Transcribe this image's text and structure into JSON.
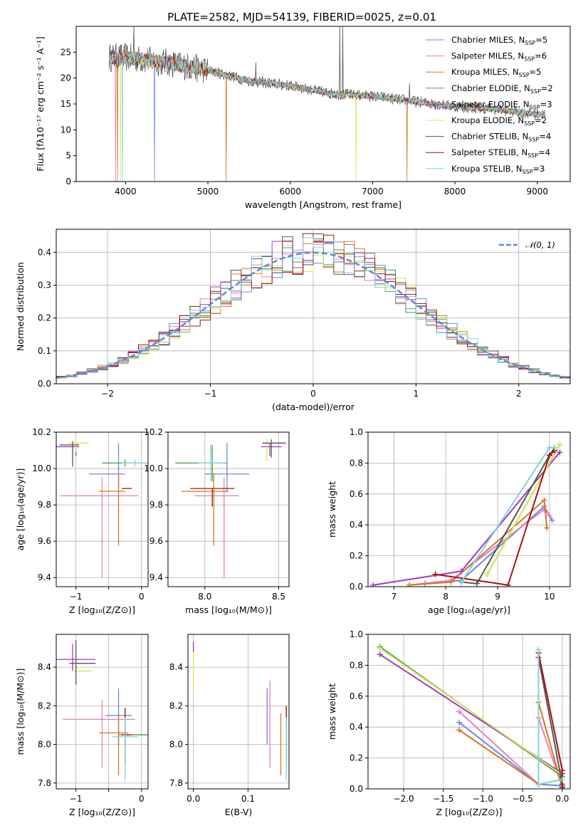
{
  "colors": [
    "#6a8be0",
    "#e67fbf",
    "#d8771f",
    "#4a9a4a",
    "#a13ac6",
    "#d6e85a",
    "#555555",
    "#a51414",
    "#7fd3dc"
  ],
  "chart_data": [
    {
      "id": "spectrum",
      "type": "line",
      "title": "PLATE=2582, MJD=54139, FIBERID=0025, z=0.01",
      "xlabel": "wavelength [Angstrom, rest frame]",
      "ylabel": "Flux [fλ10⁻¹⁷ erg cm⁻² s⁻¹ A⁻¹]",
      "xlim": [
        3400,
        9400
      ],
      "ylim": [
        0,
        30
      ],
      "xticks": [
        4000,
        5000,
        6000,
        7000,
        8000,
        9000
      ],
      "yticks": [
        0,
        5,
        10,
        15,
        20,
        25
      ],
      "grid": false,
      "legend": "top-right",
      "series": [
        {
          "name": "Chabrier MILES, N_SSP=5"
        },
        {
          "name": "Salpeter MILES, N_SSP=6"
        },
        {
          "name": "Kroupa MILES, N_SSP=5"
        },
        {
          "name": "Chabrier ELODIE, N_SSP=2"
        },
        {
          "name": "Salpeter ELODIE, N_SSP=3"
        },
        {
          "name": "Kroupa ELODIE, N_SSP=2"
        },
        {
          "name": "Chabrier STELIB, N_SSP=4"
        },
        {
          "name": "Salpeter STELIB, N_SSP=4"
        },
        {
          "name": "Kroupa STELIB, N_SSP=3"
        }
      ],
      "continuum": {
        "x": [
          3800,
          4000,
          4500,
          5000,
          5500,
          6000,
          6500,
          7000,
          7500,
          8000,
          8500,
          9000,
          9100
        ],
        "y": [
          24,
          24,
          23,
          21.5,
          19.5,
          18.5,
          17,
          16.5,
          15.5,
          14.5,
          14,
          13,
          13
        ]
      },
      "drops": [
        {
          "x": 3900,
          "series": 2
        },
        {
          "x": 3940,
          "series": 5
        },
        {
          "x": 5220,
          "series": 2
        },
        {
          "x": 6800,
          "series": 5
        },
        {
          "x": 7420,
          "series": 2
        },
        {
          "x": 3880,
          "series": 1
        },
        {
          "x": 3960,
          "series": 8
        },
        {
          "x": 4350,
          "series": 0
        }
      ],
      "spikes": [
        {
          "x": 6600,
          "y": 30
        },
        {
          "x": 6640,
          "y": 30
        },
        {
          "x": 4100,
          "y": 30
        },
        {
          "x": 5580,
          "y": 23
        },
        {
          "x": 7450,
          "y": 19
        }
      ]
    },
    {
      "id": "residuals",
      "type": "histogram",
      "xlabel": "(data-model)/error",
      "ylabel": "Normed distribution",
      "xlim": [
        -2.5,
        2.5
      ],
      "ylim": [
        0,
        0.47
      ],
      "xticks": [
        -2,
        -1,
        0,
        1,
        2
      ],
      "yticks": [
        0.0,
        0.1,
        0.2,
        0.3,
        0.4
      ],
      "grid": true,
      "legend": "top-right",
      "reference_curve": {
        "name": "𝒩(0, 1)",
        "type": "normal",
        "mean": 0,
        "sigma": 1
      },
      "bin_width": 0.1
    },
    {
      "id": "age-vs-Z",
      "type": "errorbar",
      "xlabel": "Z [log₁₀(Z/Z⊙)]",
      "ylabel": "age  [log₁₀(age/yr)]",
      "xlim": [
        -1.3,
        0.1
      ],
      "ylim": [
        9.35,
        10.2
      ],
      "xticks": [
        -1,
        -0.5,
        0
      ],
      "xticklabels": [
        "−1",
        "",
        "0"
      ],
      "yticks": [
        9.4,
        9.6,
        9.8,
        10.0,
        10.2
      ],
      "grid": true,
      "points": [
        {
          "s": 0,
          "x": -0.35,
          "xerr": [
            0.45,
            0.1
          ],
          "y": 9.97,
          "yerr": [
            0.1,
            0.17
          ]
        },
        {
          "s": 1,
          "x": -0.6,
          "xerr": [
            0.65,
            0.55
          ],
          "y": 9.85,
          "yerr": [
            0.45,
            0.1
          ]
        },
        {
          "s": 2,
          "x": -0.35,
          "xerr": [
            0.3,
            0.1
          ],
          "y": 9.875,
          "yerr": [
            0.3,
            0.1
          ]
        },
        {
          "s": 3,
          "x": -0.25,
          "xerr": [
            0.35,
            0.35
          ],
          "y": 10.03,
          "yerr": [
            0.02,
            0.02
          ]
        },
        {
          "s": 4,
          "x": -1.0,
          "xerr": [
            0.3,
            0.05
          ],
          "y": 10.12,
          "yerr": [
            0.05,
            0.02
          ]
        },
        {
          "s": 5,
          "x": -1.0,
          "xerr": [
            0.1,
            0.2
          ],
          "y": 10.14,
          "yerr": [
            0.05,
            0.02
          ]
        },
        {
          "s": 6,
          "x": -1.05,
          "xerr": [
            0.2,
            0.1
          ],
          "y": 10.13,
          "yerr": [
            0.12,
            0.02
          ]
        },
        {
          "s": 7,
          "x": -0.25,
          "xerr": [
            0.05,
            0.1
          ],
          "y": 9.89,
          "yerr": [
            0.0,
            0.0
          ]
        },
        {
          "s": 8,
          "x": -0.1,
          "xerr": [
            0.2,
            0.2
          ],
          "y": 10.03,
          "yerr": [
            0.02,
            0.02
          ]
        }
      ]
    },
    {
      "id": "age-vs-mass",
      "type": "errorbar",
      "xlabel": "mass [log₁₀(M/M⊙)]",
      "ylabel": "",
      "xlim": [
        7.75,
        8.57
      ],
      "ylim": [
        9.35,
        10.2
      ],
      "xticks": [
        8.0,
        8.5
      ],
      "yticks": [
        9.4,
        9.6,
        9.8,
        10.0,
        10.2
      ],
      "grid": true,
      "points": [
        {
          "s": 0,
          "x": 8.15,
          "xerr": [
            0.15,
            0.15
          ],
          "y": 9.97,
          "yerr": [
            0.1,
            0.17
          ]
        },
        {
          "s": 1,
          "x": 8.13,
          "xerr": [
            0.2,
            0.1
          ],
          "y": 9.85,
          "yerr": [
            0.45,
            0.1
          ]
        },
        {
          "s": 2,
          "x": 8.06,
          "xerr": [
            0.22,
            0.1
          ],
          "y": 9.875,
          "yerr": [
            0.3,
            0.1
          ]
        },
        {
          "s": 3,
          "x": 8.05,
          "xerr": [
            0.25,
            0.1
          ],
          "y": 10.03,
          "yerr": [
            0.1,
            0.1
          ]
        },
        {
          "s": 4,
          "x": 8.44,
          "xerr": [
            0.06,
            0.08
          ],
          "y": 10.12,
          "yerr": [
            0.05,
            0.02
          ]
        },
        {
          "s": 5,
          "x": 8.42,
          "xerr": [
            0.03,
            0.13
          ],
          "y": 10.14,
          "yerr": [
            0.1,
            0.02
          ]
        },
        {
          "s": 6,
          "x": 8.45,
          "xerr": [
            0.06,
            0.1
          ],
          "y": 10.14,
          "yerr": [
            0.08,
            0.02
          ]
        },
        {
          "s": 7,
          "x": 8.05,
          "xerr": [
            0.15,
            0.15
          ],
          "y": 9.89,
          "yerr": [
            0.1,
            0.0
          ]
        },
        {
          "s": 8,
          "x": 8.04,
          "xerr": [
            0.08,
            0.1
          ],
          "y": 10.03,
          "yerr": [
            0.1,
            0.1
          ]
        }
      ]
    },
    {
      "id": "weight-vs-age",
      "type": "line",
      "xlabel": "age  [log₁₀(age/yr)]",
      "ylabel": "mass weight",
      "xlim": [
        6.5,
        10.4
      ],
      "ylim": [
        0,
        1.0
      ],
      "xticks": [
        7,
        8,
        9,
        10
      ],
      "yticks": [
        0.0,
        0.2,
        0.4,
        0.6,
        0.8,
        1.0
      ],
      "grid": true,
      "lines": [
        {
          "s": 0,
          "x": [
            7.6,
            8.3,
            9.9,
            10.05
          ],
          "y": [
            0.02,
            0.04,
            0.52,
            0.43
          ]
        },
        {
          "s": 1,
          "x": [
            7.3,
            8.1,
            9.9,
            10.0
          ],
          "y": [
            0.01,
            0.04,
            0.5,
            0.46
          ]
        },
        {
          "s": 2,
          "x": [
            7.3,
            8.1,
            9.9,
            9.95
          ],
          "y": [
            0.01,
            0.03,
            0.56,
            0.38
          ]
        },
        {
          "s": 3,
          "x": [
            8.8,
            10.2
          ],
          "y": [
            0.08,
            0.92
          ]
        },
        {
          "s": 4,
          "x": [
            6.6,
            8.3,
            10.2
          ],
          "y": [
            0.01,
            0.1,
            0.87
          ]
        },
        {
          "s": 5,
          "x": [
            8.8,
            10.2
          ],
          "y": [
            0.08,
            0.92
          ]
        },
        {
          "s": 6,
          "x": [
            8.3,
            8.6,
            10.0,
            10.1
          ],
          "y": [
            0.03,
            0.02,
            0.85,
            0.9
          ]
        },
        {
          "s": 7,
          "x": [
            7.8,
            9.2,
            10.0,
            10.1
          ],
          "y": [
            0.08,
            0.01,
            0.85,
            0.88
          ]
        },
        {
          "s": 8,
          "x": [
            8.3,
            10.0,
            10.1
          ],
          "y": [
            0.03,
            0.9,
            0.9
          ]
        }
      ]
    },
    {
      "id": "mass-vs-Z",
      "type": "errorbar",
      "xlabel": "Z [log₁₀(Z/Z⊙)]",
      "ylabel": "mass [log₁₀(M/M⊙)]",
      "xlim": [
        -1.3,
        0.1
      ],
      "ylim": [
        7.77,
        8.57
      ],
      "xticks": [
        -1,
        -0.5,
        0
      ],
      "xticklabels": [
        "−1",
        "",
        "0"
      ],
      "yticks": [
        7.8,
        8.0,
        8.2,
        8.4
      ],
      "grid": true,
      "points": [
        {
          "s": 0,
          "x": -0.35,
          "xerr": [
            0.2,
            0.2
          ],
          "y": 8.15,
          "yerr": [
            0.15,
            0.14
          ]
        },
        {
          "s": 1,
          "x": -0.6,
          "xerr": [
            0.6,
            0.5
          ],
          "y": 8.13,
          "yerr": [
            0.25,
            0.1
          ]
        },
        {
          "s": 2,
          "x": -0.35,
          "xerr": [
            0.3,
            0.15
          ],
          "y": 8.06,
          "yerr": [
            0.22,
            0.1
          ]
        },
        {
          "s": 3,
          "x": -0.25,
          "xerr": [
            0.1,
            0.35
          ],
          "y": 8.05,
          "yerr": [
            0.15,
            0.13
          ]
        },
        {
          "s": 4,
          "x": -1.05,
          "xerr": [
            0.3,
            0.35
          ],
          "y": 8.44,
          "yerr": [
            0.06,
            0.08
          ]
        },
        {
          "s": 5,
          "x": -1.0,
          "xerr": [
            0.03,
            0.25
          ],
          "y": 8.38,
          "yerr": [
            0.1,
            0.1
          ]
        },
        {
          "s": 6,
          "x": -1.0,
          "xerr": [
            0.1,
            0.3
          ],
          "y": 8.42,
          "yerr": [
            0.11,
            0.12
          ]
        },
        {
          "s": 7,
          "x": -0.25,
          "xerr": [
            0.05,
            0.1
          ],
          "y": 8.05,
          "yerr": [
            0.15,
            0.14
          ]
        },
        {
          "s": 8,
          "x": -0.25,
          "xerr": [
            0.2,
            0.2
          ],
          "y": 8.04,
          "yerr": [
            0.23,
            0.1
          ]
        }
      ]
    },
    {
      "id": "mass-vs-ebv",
      "type": "errorbar",
      "xlabel": "E(B-V)",
      "ylabel": "",
      "xlim": [
        -0.01,
        0.175
      ],
      "ylim": [
        7.77,
        8.57
      ],
      "xticks": [
        0.0,
        0.1
      ],
      "yticks": [
        7.8,
        8.0,
        8.2,
        8.4
      ],
      "grid": true,
      "points": [
        {
          "s": 0,
          "x": 0.135,
          "y": 8.15,
          "yerr": [
            0.15,
            0.14
          ]
        },
        {
          "s": 1,
          "x": 0.14,
          "y": 8.13,
          "yerr": [
            0.25,
            0.2
          ]
        },
        {
          "s": 2,
          "x": 0.16,
          "y": 8.06,
          "yerr": [
            0.22,
            0.1
          ]
        },
        {
          "s": 3,
          "x": 0.0,
          "y": 8.5,
          "yerr": [
            0.03,
            0.03
          ]
        },
        {
          "s": 4,
          "x": 0.0,
          "y": 8.5,
          "yerr": [
            0.03,
            0.03
          ]
        },
        {
          "s": 5,
          "x": 0.0,
          "y": 8.38,
          "yerr": [
            0.11,
            0.1
          ]
        },
        {
          "s": 6,
          "x": 0.17,
          "y": 8.05,
          "yerr": [
            0.15,
            0.14
          ]
        },
        {
          "s": 7,
          "x": 0.17,
          "y": 8.12,
          "yerr": [
            0.05,
            0.08
          ]
        },
        {
          "s": 8,
          "x": 0.17,
          "y": 8.04,
          "yerr": [
            0.23,
            0.1
          ]
        }
      ]
    },
    {
      "id": "weight-vs-Z",
      "type": "line",
      "xlabel": "Z [log₁₀(Z/Z⊙)]",
      "ylabel": "mass weight",
      "xlim": [
        -2.45,
        0.1
      ],
      "ylim": [
        0,
        1.0
      ],
      "xticks": [
        -2.0,
        -1.5,
        -1.0,
        -0.5,
        0.0
      ],
      "yticks": [
        0.0,
        0.2,
        0.4,
        0.6,
        0.8,
        1.0
      ],
      "grid": true,
      "lines": [
        {
          "s": 0,
          "x": [
            -1.3,
            -0.3,
            0.0
          ],
          "y": [
            0.43,
            0.03,
            0.02
          ]
        },
        {
          "s": 1,
          "x": [
            -1.3,
            -0.3,
            -0.3,
            0.0
          ],
          "y": [
            0.5,
            0.03,
            0.46,
            0.01
          ]
        },
        {
          "s": 2,
          "x": [
            -1.3,
            -0.3,
            -0.3,
            0.0
          ],
          "y": [
            0.38,
            0.03,
            0.56,
            0.01
          ]
        },
        {
          "s": 3,
          "x": [
            -2.3,
            0.0
          ],
          "y": [
            0.92,
            0.08
          ]
        },
        {
          "s": 4,
          "x": [
            -2.3,
            0.0
          ],
          "y": [
            0.87,
            0.1
          ]
        },
        {
          "s": 5,
          "x": [
            -2.3,
            0.0
          ],
          "y": [
            0.91,
            0.09
          ]
        },
        {
          "s": 6,
          "x": [
            -0.3,
            -0.3,
            0.0
          ],
          "y": [
            0.03,
            0.85,
            0.03
          ]
        },
        {
          "s": 7,
          "x": [
            -0.3,
            0.0,
            0.0
          ],
          "y": [
            0.88,
            0.12,
            0.01
          ]
        },
        {
          "s": 8,
          "x": [
            -0.3,
            -0.3,
            0.0
          ],
          "y": [
            0.9,
            0.03,
            0.06
          ]
        }
      ]
    }
  ]
}
